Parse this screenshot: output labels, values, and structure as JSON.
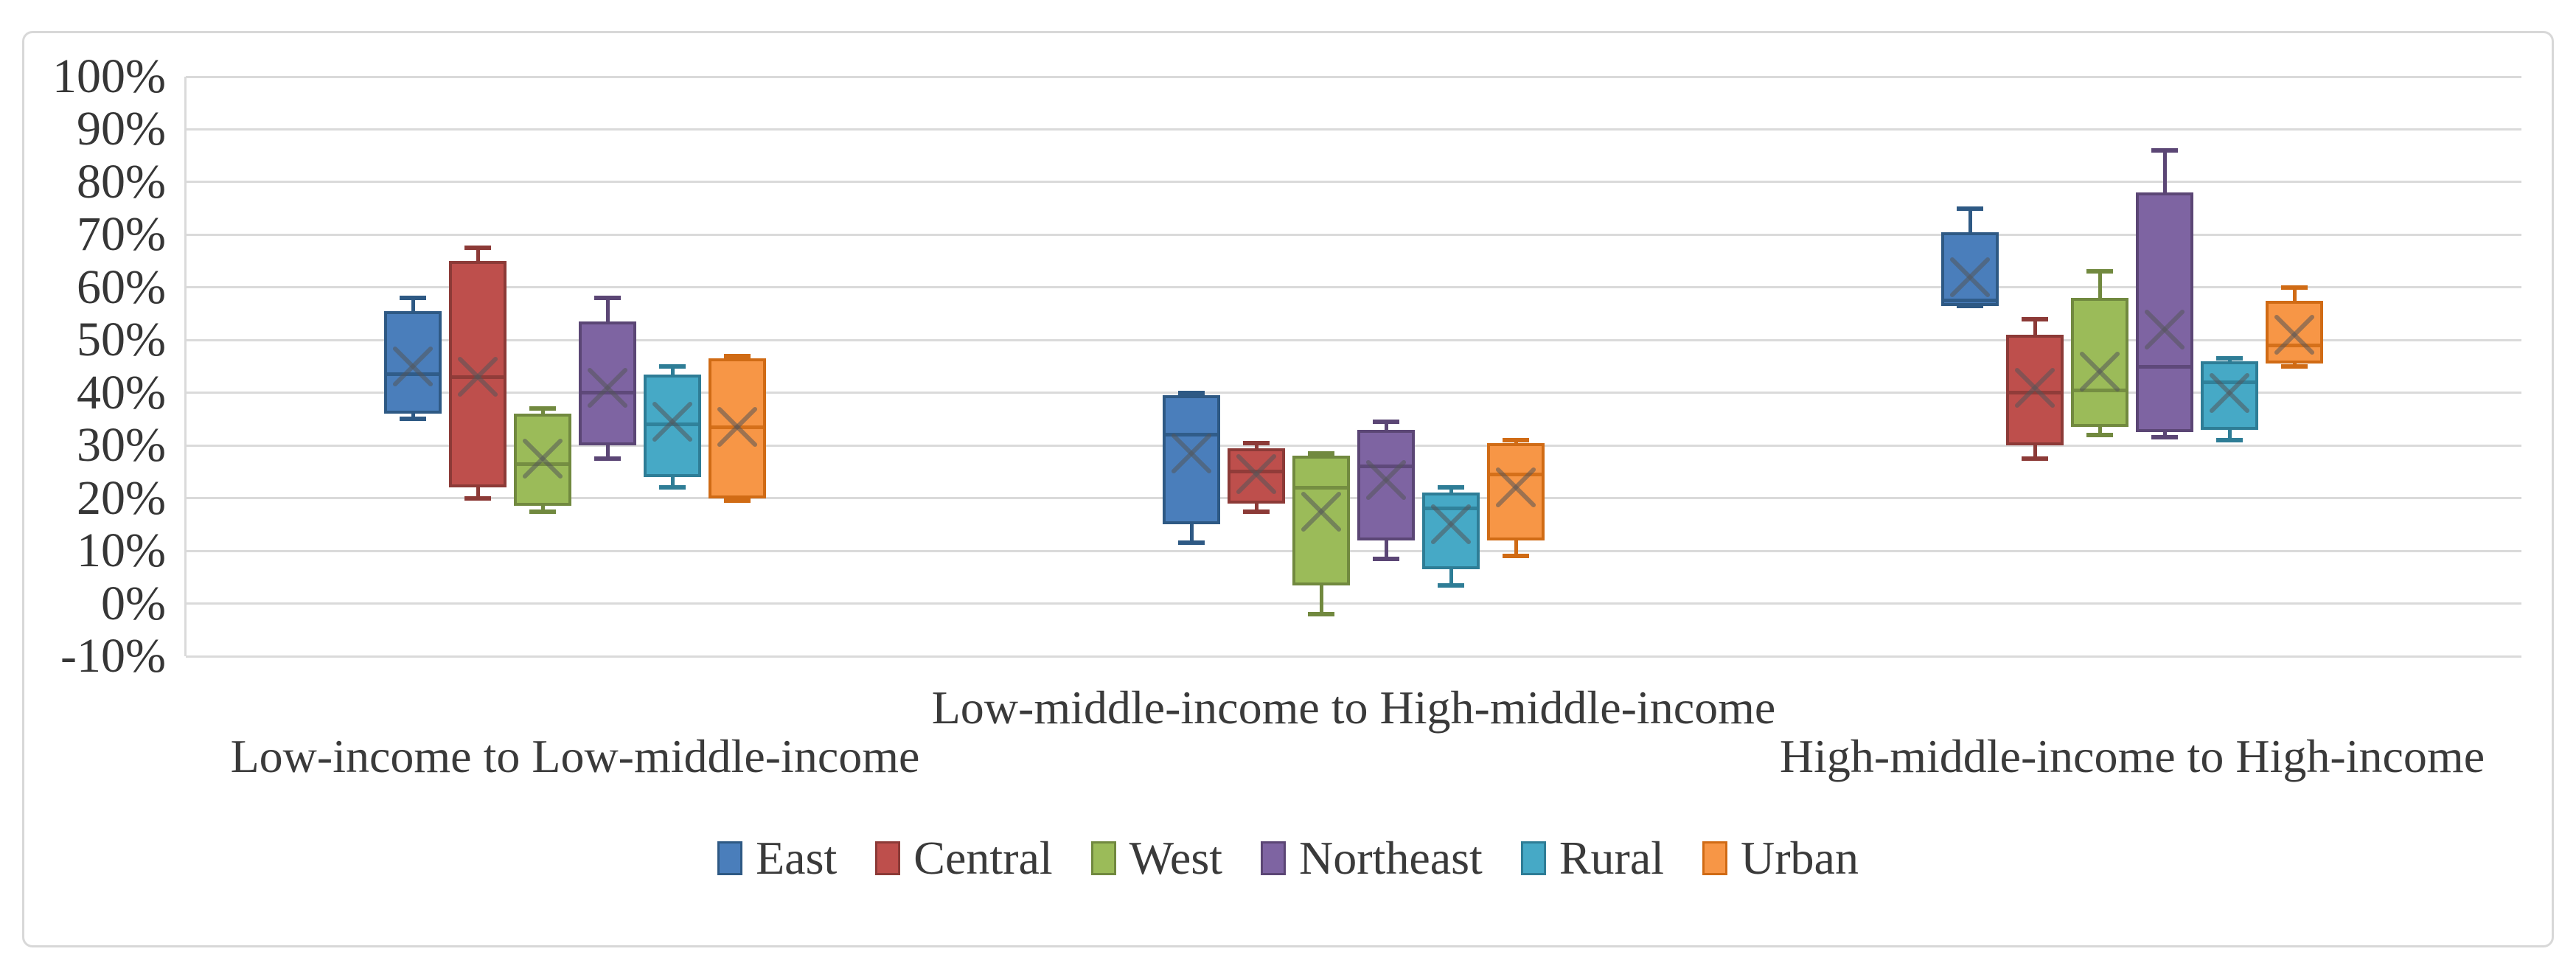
{
  "figure": {
    "background": "#ffffff",
    "border_color": "#d8d8d8"
  },
  "chart_data": {
    "type": "boxplot",
    "title": "",
    "xlabel": "",
    "ylabel": "",
    "text_color": "#3a3a3a",
    "categories": [
      "Low-income to Low-middle-income",
      "Low-middle-income to High-middle-income",
      "High-middle-income to High-income"
    ],
    "y_axis": {
      "min": -10,
      "max": 100,
      "step": 10,
      "unit": "%",
      "tick_labels": [
        "100%",
        "90%",
        "80%",
        "70%",
        "60%",
        "50%",
        "40%",
        "30%",
        "20%",
        "10%",
        "0%",
        "-10%"
      ],
      "gridlines": true,
      "gridline_color": "#dadada"
    },
    "legend": {
      "position": "bottom",
      "labels": [
        "East",
        "Central",
        "West",
        "Northeast",
        "Rural",
        "Urban"
      ]
    },
    "mean_marker": "x",
    "series": [
      {
        "name": "East",
        "fill": "#4a7ebb",
        "border": "#2e5984",
        "boxes": [
          {
            "min": 35,
            "q1": 36,
            "median": 43.5,
            "q3": 55.5,
            "max": 58,
            "mean": 45
          },
          {
            "min": 11.5,
            "q1": 15,
            "median": 32,
            "q3": 39.5,
            "max": 40,
            "mean": 28.5
          },
          {
            "min": 56.5,
            "q1": 56.5,
            "median": 57.5,
            "q3": 70.5,
            "max": 75,
            "mean": 62
          }
        ]
      },
      {
        "name": "Central",
        "fill": "#be4f4c",
        "border": "#8c3a37",
        "boxes": [
          {
            "min": 20,
            "q1": 22,
            "median": 43,
            "q3": 65,
            "max": 67.5,
            "mean": 43
          },
          {
            "min": 17.5,
            "q1": 19,
            "median": 25,
            "q3": 29.5,
            "max": 30.5,
            "mean": 24.5
          },
          {
            "min": 27.5,
            "q1": 30,
            "median": 40,
            "q3": 51,
            "max": 54,
            "mean": 41
          }
        ]
      },
      {
        "name": "West",
        "fill": "#9bbb59",
        "border": "#71893f",
        "boxes": [
          {
            "min": 17.5,
            "q1": 18.5,
            "median": 26.5,
            "q3": 36,
            "max": 37,
            "mean": 27.5
          },
          {
            "min": -2,
            "q1": 3.5,
            "median": 22,
            "q3": 28,
            "max": 28.5,
            "mean": 17.5
          },
          {
            "min": 32,
            "q1": 33.5,
            "median": 40.5,
            "q3": 58,
            "max": 63,
            "mean": 44
          }
        ]
      },
      {
        "name": "Northeast",
        "fill": "#7e64a2",
        "border": "#5b4675",
        "boxes": [
          {
            "min": 27.5,
            "q1": 30,
            "median": 40,
            "q3": 53.5,
            "max": 58,
            "mean": 41
          },
          {
            "min": 8.5,
            "q1": 12,
            "median": 26,
            "q3": 33,
            "max": 34.5,
            "mean": 23.5
          },
          {
            "min": 31.5,
            "q1": 32.5,
            "median": 45,
            "q3": 78,
            "max": 86,
            "mean": 52
          }
        ]
      },
      {
        "name": "Rural",
        "fill": "#46a9c6",
        "border": "#2e7d96",
        "boxes": [
          {
            "min": 22,
            "q1": 24,
            "median": 34,
            "q3": 43.5,
            "max": 45,
            "mean": 34.5
          },
          {
            "min": 3.5,
            "q1": 6.5,
            "median": 18,
            "q3": 21,
            "max": 22,
            "mean": 15
          },
          {
            "min": 31,
            "q1": 33,
            "median": 42,
            "q3": 46,
            "max": 46.5,
            "mean": 40
          }
        ]
      },
      {
        "name": "Urban",
        "fill": "#f79646",
        "border": "#d06b15",
        "boxes": [
          {
            "min": 19.5,
            "q1": 20,
            "median": 33.5,
            "q3": 46.5,
            "max": 47,
            "mean": 33.5
          },
          {
            "min": 9,
            "q1": 12,
            "median": 24.5,
            "q3": 30.5,
            "max": 31,
            "mean": 22
          },
          {
            "min": 45,
            "q1": 45.5,
            "median": 49,
            "q3": 57.5,
            "max": 60,
            "mean": 51
          }
        ]
      }
    ]
  }
}
